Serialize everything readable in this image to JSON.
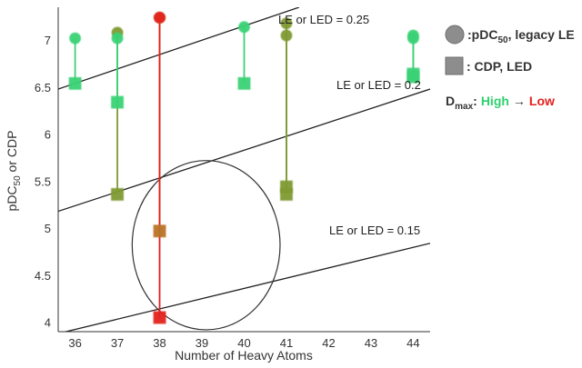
{
  "chart_data": {
    "type": "scatter",
    "xlabel": "Number of Heavy Atoms",
    "ylabel_prefix": "pDC",
    "ylabel_sub": "50",
    "ylabel_suffix": " or CDP",
    "x_ticks": [
      "36",
      "37",
      "38",
      "39",
      "40",
      "41",
      "42",
      "43",
      "44"
    ],
    "y_ticks": [
      "4",
      "4.5",
      "5",
      "5.5",
      "6",
      "6.5",
      "7"
    ],
    "ylim": [
      3.9,
      7.35
    ],
    "x_range": [
      35.6,
      44.4
    ],
    "grid": false,
    "legend_position": "right",
    "legend": {
      "circle_prefix": ":pDC",
      "circle_sub": "50",
      "circle_suffix": ", legacy LE",
      "square_label": ": CDP, LED",
      "dmax_prefix": "D",
      "dmax_sub": "max",
      "dmax_colon": ":",
      "dmax_high": "High",
      "dmax_arrow": "→",
      "dmax_low": "Low",
      "high_color": "#2fd16f",
      "low_color": "#e4201c"
    },
    "compounds": [
      {
        "x": 36,
        "pdc50": 7.02,
        "cdp": 6.54,
        "color": "#3ad276"
      },
      {
        "x": 37,
        "pdc50": 7.08,
        "cdp": 5.36,
        "color": "#7f9a32"
      },
      {
        "x": 37,
        "pdc50": 7.02,
        "cdp": 6.34,
        "color": "#3ad276"
      },
      {
        "x": 38,
        "pdc50": 7.24,
        "cdp": 4.97,
        "color": "#ba7228"
      },
      {
        "x": 38,
        "pdc50": 7.24,
        "cdp": 4.05,
        "color": "#e4201c"
      },
      {
        "x": 40,
        "pdc50": 7.14,
        "cdp": 6.54,
        "color": "#3ad276"
      },
      {
        "x": 41,
        "pdc50": 7.18,
        "cdp": 5.36,
        "color": "#7f9a32"
      },
      {
        "x": 41,
        "pdc50": 7.05,
        "cdp": 5.44,
        "color": "#7f9a32"
      },
      {
        "x": 44,
        "pdc50": 7.05,
        "cdp": 6.64,
        "color": "#3ad276"
      },
      {
        "x": 44,
        "pdc50": 7.02,
        "cdp": 6.61,
        "color": "#3ad276"
      }
    ],
    "reference_lines": [
      {
        "label": "LE or LED = 0.25",
        "x0": 35.6,
        "y0": 6.48,
        "x1": 41.3,
        "y1": 7.35
      },
      {
        "label": "LE or LED = 0.2",
        "x0": 35.6,
        "y0": 5.18,
        "x1": 44.4,
        "y1": 6.48
      },
      {
        "label": "LE or LED = 0.15",
        "x0": 35.6,
        "y0": 3.88,
        "x1": 44.4,
        "y1": 4.84
      }
    ],
    "highlight_ellipse": {
      "cx": 39.1,
      "cy": 4.82,
      "rx": 1.75,
      "ry": 0.9
    }
  }
}
